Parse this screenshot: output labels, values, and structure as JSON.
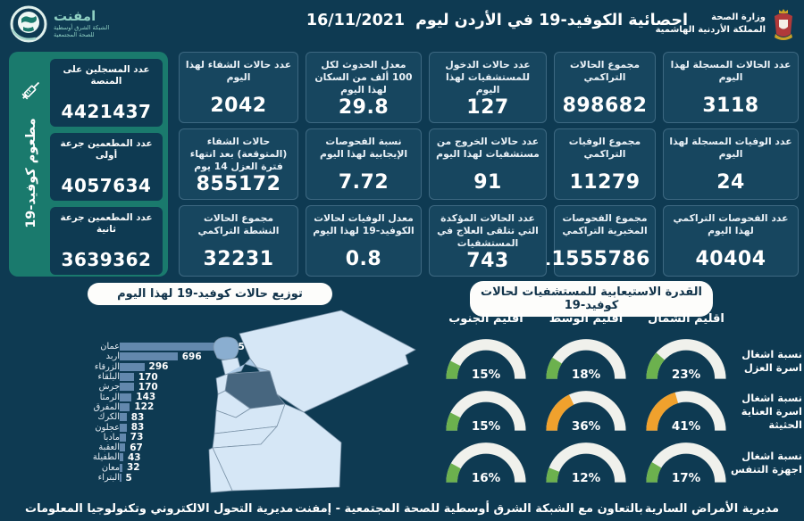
{
  "header": {
    "title": "احصائية الكوفيد-19 في الأردن ليوم",
    "date": "16/11/2021",
    "ministry_line1": "وزارة الصحة",
    "ministry_line2": "المملكة الأردنية الهاشمية",
    "logo_name": "امفنت",
    "logo_sub1": "الشبكة الشرق أوسطية",
    "logo_sub2": "للصحة المجتمعية"
  },
  "stats": {
    "cards": [
      {
        "label": "عدد الحالات المسجلة لهذا اليوم",
        "value": "3118"
      },
      {
        "label": "مجموع الحالات التراكمي",
        "value": "898682"
      },
      {
        "label": "عدد حالات الدخول للمستشفيات لهذا اليوم",
        "value": "127"
      },
      {
        "label": "معدل الحدوث لكل 100 ألف من السكان لهذا اليوم",
        "value": "29.8"
      },
      {
        "label": "عدد حالات الشفاء لهذا اليوم",
        "value": "2042"
      },
      {
        "label": "عدد الوفيات المسجلة لهذا اليوم",
        "value": "24"
      },
      {
        "label": "مجموع الوفيات التراكمي",
        "value": "11279"
      },
      {
        "label": "عدد حالات الخروج من مستشفيات لهذا اليوم",
        "value": "91"
      },
      {
        "label": "نسبة الفحوصات الإيجابية لهذا اليوم",
        "value": "7.72"
      },
      {
        "label": "حالات الشفاء (المتوقعة) بعد انتهاء فترة العزل 14 يوم",
        "value": "855172"
      },
      {
        "label": "عدد الفحوصات التراكمي لهذا اليوم",
        "value": "40404"
      },
      {
        "label": "مجموع الفحوصات المخبرية التراكمي",
        "value": "11555786"
      },
      {
        "label": "عدد الحالات المؤكدة التي تتلقى العلاج في المستشفيات",
        "value": "743"
      },
      {
        "label": "معدل الوفيات لحالات الكوفيد-19 لهذا اليوم",
        "value": "0.8"
      },
      {
        "label": "مجموع الحالات النشطة التراكمي",
        "value": "32231"
      }
    ]
  },
  "vaccination": {
    "side_label": "مطعوم كوفيد-19",
    "cards": [
      {
        "label": "عدد المسجلين على المنصة",
        "value": "4421437"
      },
      {
        "label": "عدد المطعمين جرعة أولى",
        "value": "4057634"
      },
      {
        "label": "عدد المطعمين جرعة ثانية",
        "value": "3639362"
      }
    ]
  },
  "chart_data": [
    {
      "type": "bar",
      "title": "توزيع حالات كوفيد-19 لهذا اليوم",
      "orientation": "horizontal",
      "categories": [
        "عمان",
        "اربد",
        "الزرقاء",
        "البلقاء",
        "جرش",
        "الرمثا",
        "المفرق",
        "الكرك",
        "عجلون",
        "مادبا",
        "العقبة",
        "الطفيلة",
        "معان",
        "البتراء"
      ],
      "values": [
        1135,
        696,
        296,
        170,
        170,
        143,
        122,
        83,
        83,
        73,
        67,
        43,
        32,
        5
      ],
      "xlim": [
        0,
        1200
      ],
      "legend": "none",
      "grid": false
    },
    {
      "type": "gauge-grid",
      "title": "القدرة الاستيعابية للمستشفيات لحالات كوفيد-19",
      "columns": [
        "اقليم الجنوب",
        "اقليم الوسط",
        "اقليم الشمال"
      ],
      "rows": [
        "نسبة اشغال اسرة العزل",
        "نسبة اشغال اسرة العناية الحثيثة",
        "نسبة اشغال اجهزة التنفس"
      ],
      "values": [
        [
          15,
          18,
          23
        ],
        [
          15,
          36,
          41
        ],
        [
          16,
          12,
          17
        ]
      ],
      "unit": "%",
      "range": [
        0,
        100
      ],
      "warn_threshold": 30
    }
  ],
  "footer": {
    "left": "مديرية التحول الالكتروني وتكنولوجيا المعلومات",
    "center": "بالتعاون مع الشبكة الشرق أوسطية للصحة المجتمعية - إمفنت",
    "right": "مديرية الأمراض السارية"
  },
  "colors": {
    "background": "#0e3a52",
    "card": "#17465f",
    "teal": "#1a7a6d",
    "bar": "#6388ad",
    "gauge_green": "#6cb14e",
    "gauge_orange": "#f0a12d",
    "gauge_track": "#f0f1ec"
  }
}
